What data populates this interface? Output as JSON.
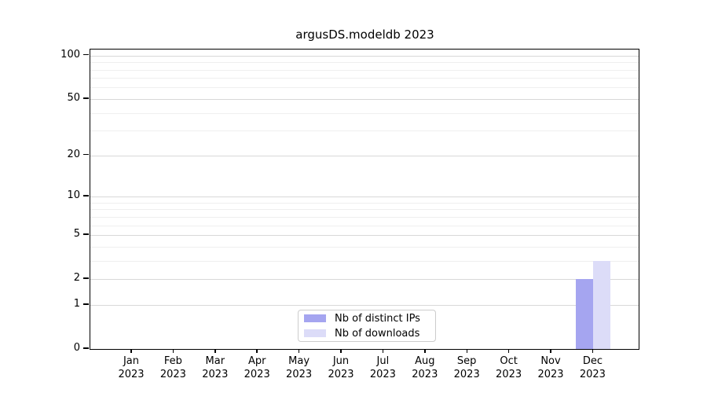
{
  "chart_data": {
    "type": "bar",
    "title": "argusDS.modeldb 2023",
    "x_categories": [
      {
        "month": "Jan",
        "year": "2023"
      },
      {
        "month": "Feb",
        "year": "2023"
      },
      {
        "month": "Mar",
        "year": "2023"
      },
      {
        "month": "Apr",
        "year": "2023"
      },
      {
        "month": "May",
        "year": "2023"
      },
      {
        "month": "Jun",
        "year": "2023"
      },
      {
        "month": "Jul",
        "year": "2023"
      },
      {
        "month": "Aug",
        "year": "2023"
      },
      {
        "month": "Sep",
        "year": "2023"
      },
      {
        "month": "Oct",
        "year": "2023"
      },
      {
        "month": "Nov",
        "year": "2023"
      },
      {
        "month": "Dec",
        "year": "2023"
      }
    ],
    "series": [
      {
        "name": "Nb of distinct IPs",
        "color": "#a5a5f0",
        "values": [
          0,
          0,
          0,
          0,
          0,
          0,
          0,
          0,
          0,
          0,
          0,
          2
        ]
      },
      {
        "name": "Nb of downloads",
        "color": "#dcdcf8",
        "values": [
          0,
          0,
          0,
          0,
          0,
          0,
          0,
          0,
          0,
          0,
          0,
          3
        ]
      }
    ],
    "y_axis": {
      "scale": "log1p",
      "ylim": [
        0,
        110
      ],
      "tick_values": [
        100,
        50,
        20,
        10,
        5,
        2,
        1,
        0
      ],
      "minor_gridline_values": [
        3,
        4,
        6,
        7,
        8,
        9,
        30,
        40,
        60,
        70,
        80,
        90
      ]
    },
    "legend_position": "lower center",
    "grid": true
  },
  "colors": {
    "major_grid": "#d8d8d8",
    "minor_grid": "#efefef",
    "spine": "#000000"
  }
}
